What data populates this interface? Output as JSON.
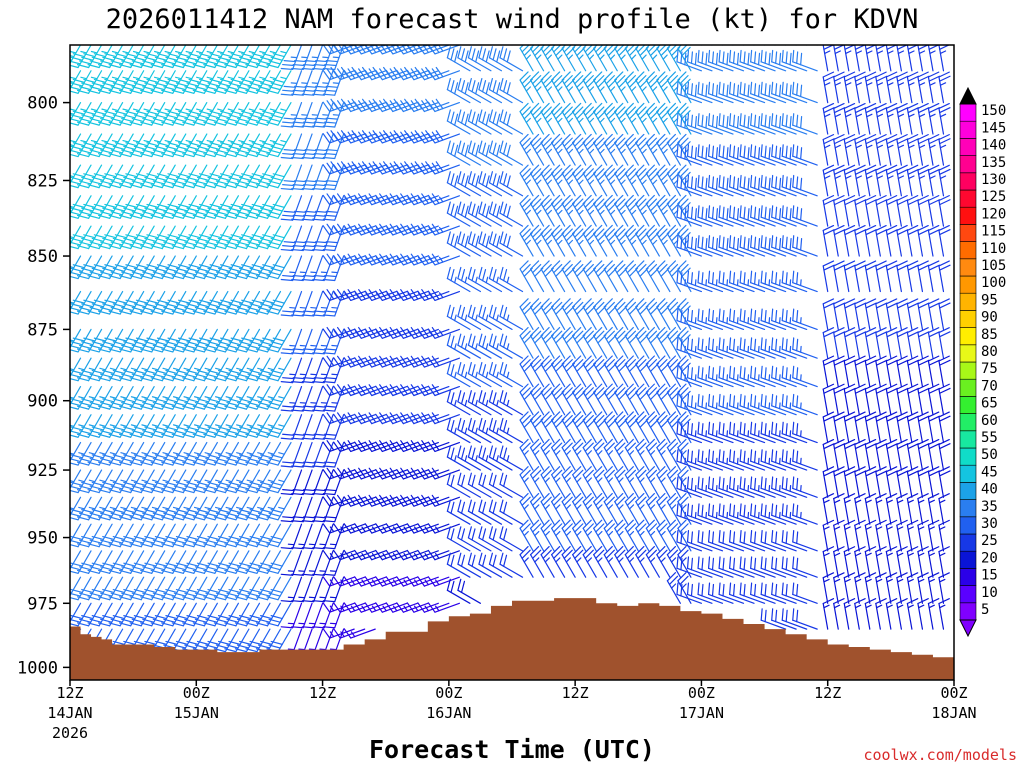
{
  "chart_data": {
    "type": "wind_barb_time_height",
    "title": "2026011412 NAM forecast wind profile (kt) for KDVN",
    "xlabel": "Forecast Time (UTC)",
    "ylabel": "",
    "y_axis": {
      "label_unit": "hPa",
      "ylim": [
        1005,
        782
      ],
      "ticks": [
        800,
        825,
        850,
        875,
        900,
        925,
        950,
        975,
        1000
      ]
    },
    "x_axis": {
      "xlim_hours": [
        0,
        84
      ],
      "ticks": [
        {
          "hour": 0,
          "label": "12Z",
          "sub": "14JAN",
          "sub2": "2026"
        },
        {
          "hour": 12,
          "label": "00Z",
          "sub": "15JAN",
          "sub2": ""
        },
        {
          "hour": 24,
          "label": "12Z",
          "sub": "",
          "sub2": ""
        },
        {
          "hour": 36,
          "label": "00Z",
          "sub": "16JAN",
          "sub2": ""
        },
        {
          "hour": 48,
          "label": "12Z",
          "sub": "",
          "sub2": ""
        },
        {
          "hour": 60,
          "label": "00Z",
          "sub": "17JAN",
          "sub2": ""
        },
        {
          "hour": 72,
          "label": "12Z",
          "sub": "",
          "sub2": ""
        },
        {
          "hour": 84,
          "label": "00Z",
          "sub": "18JAN",
          "sub2": ""
        }
      ]
    },
    "surface_pressure": {
      "hours": [
        0,
        1,
        2,
        3,
        4,
        6,
        8,
        9,
        10,
        12,
        14,
        17,
        18,
        20,
        22,
        24,
        26,
        28,
        30,
        32,
        34,
        36,
        38,
        40,
        42,
        43,
        44,
        46,
        48,
        50,
        52,
        54,
        56,
        58,
        60,
        62,
        64,
        66,
        68,
        70,
        72,
        74,
        76,
        78,
        80,
        82,
        84
      ],
      "pressure_hPa": [
        984,
        987,
        988,
        989,
        991,
        991,
        992,
        992,
        993,
        993,
        994,
        994,
        993,
        993,
        993,
        993,
        991,
        989,
        986,
        986,
        982,
        980,
        979,
        976,
        974,
        974,
        974,
        973,
        973,
        975,
        976,
        975,
        976,
        978,
        979,
        981,
        983,
        985,
        987,
        989,
        991,
        992,
        993,
        994,
        995,
        996,
        998
      ]
    },
    "wind_levels_hPa": [
      782,
      790,
      800,
      810,
      820,
      830,
      840,
      850,
      862,
      875,
      885,
      895,
      905,
      915,
      925,
      935,
      945,
      955,
      965,
      975,
      985,
      995
    ],
    "wind_time_step_hours": 1,
    "wind_regimes": [
      {
        "hours": [
          0,
          22
        ],
        "direction_from_deg": 210,
        "speed_kt_top": 45,
        "speed_kt_bottom": 28
      },
      {
        "hours": [
          22,
          27
        ],
        "direction_from_deg": 200,
        "speed_kt_top": 35,
        "speed_kt_bottom": 12
      },
      {
        "hours": [
          27,
          38
        ],
        "direction_from_deg": 250,
        "speed_kt_top": 32,
        "speed_kt_bottom": 12
      },
      {
        "hours": [
          38,
          44
        ],
        "direction_from_deg": 300,
        "speed_kt_top": 33,
        "speed_kt_bottom": 18
      },
      {
        "hours": [
          44,
          60
        ],
        "direction_from_deg": 330,
        "speed_kt_top": 38,
        "speed_kt_bottom": 22
      },
      {
        "hours": [
          60,
          72
        ],
        "direction_from_deg": 290,
        "speed_kt_top": 32,
        "speed_kt_bottom": 20
      },
      {
        "hours": [
          72,
          84
        ],
        "direction_from_deg": 350,
        "speed_kt_top": 25,
        "speed_kt_bottom": 15
      }
    ],
    "colorbar": {
      "values": [
        5,
        10,
        15,
        20,
        25,
        30,
        35,
        40,
        45,
        50,
        55,
        60,
        65,
        70,
        75,
        80,
        85,
        90,
        95,
        100,
        105,
        110,
        115,
        120,
        125,
        130,
        135,
        140,
        145,
        150
      ],
      "colors": [
        "#8000ff",
        "#5a00ff",
        "#2b00e8",
        "#0a14d6",
        "#1738e6",
        "#2060f0",
        "#2a7ef0",
        "#1ca2e8",
        "#14c4e0",
        "#10dcc8",
        "#18e8a0",
        "#22ee66",
        "#34f030",
        "#6af020",
        "#a8f818",
        "#e8f818",
        "#ffee00",
        "#ffd000",
        "#ffb400",
        "#ff9800",
        "#ff8a10",
        "#ff6c00",
        "#ff4810",
        "#ff1010",
        "#ff0830",
        "#ff0060",
        "#ff0090",
        "#ff00b8",
        "#ff00dc",
        "#ff00ff"
      ]
    }
  },
  "credit": "coolwx.com/models",
  "colors": {
    "terrain": "#a0522d",
    "background": "#ffffff",
    "credit": "#d92b2b"
  }
}
